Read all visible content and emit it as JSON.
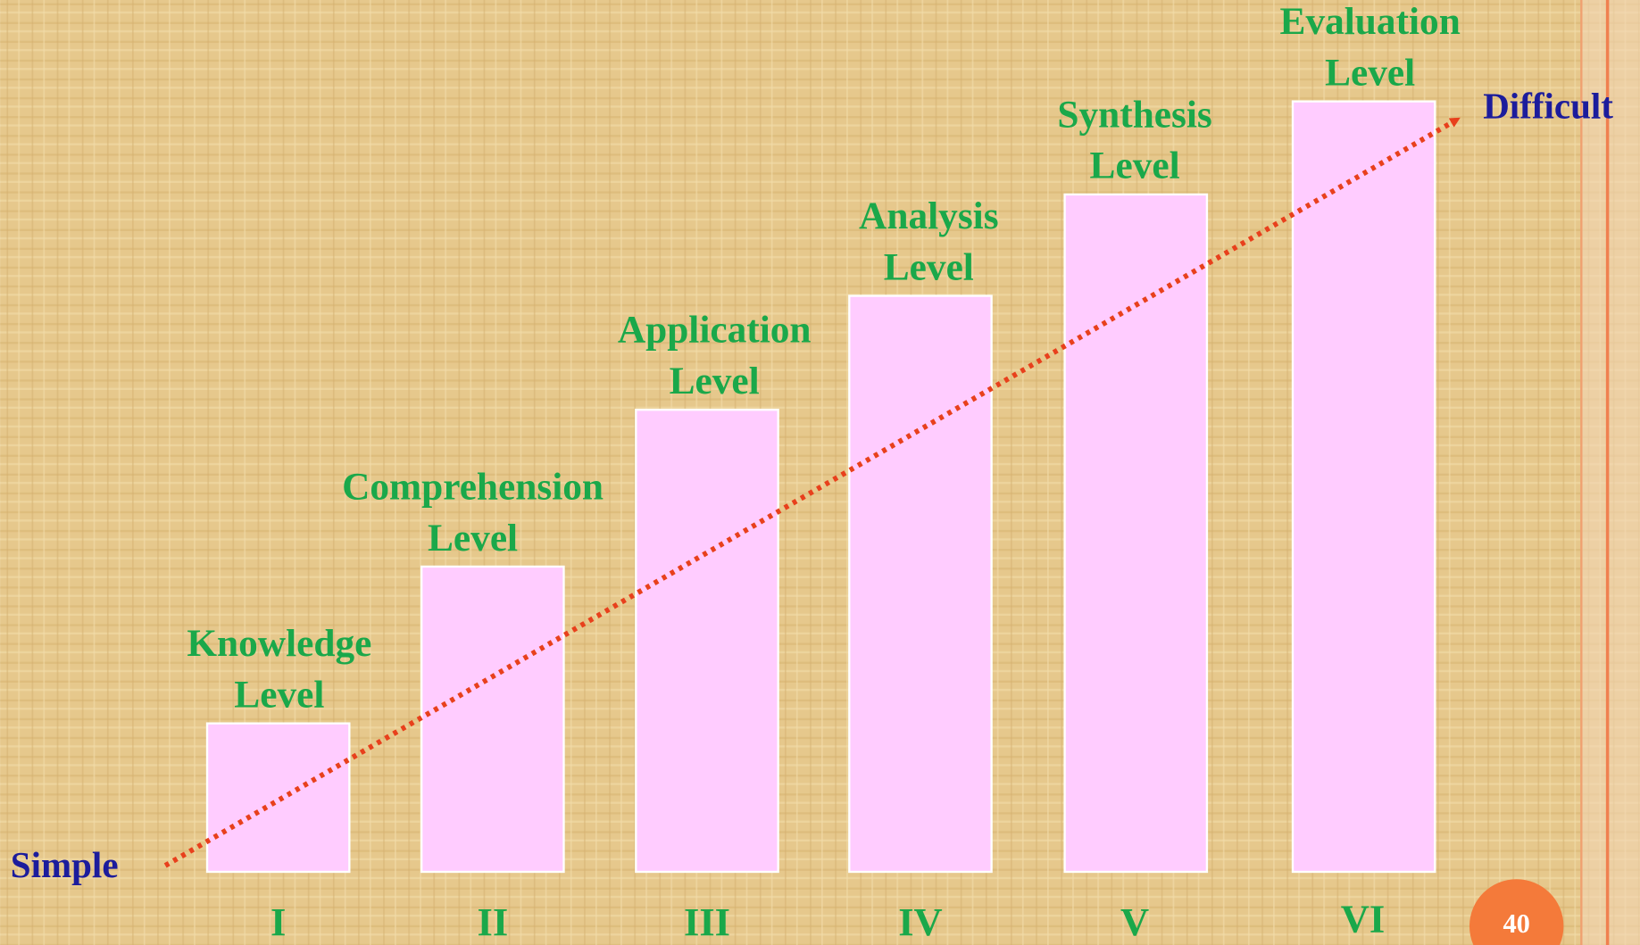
{
  "levels": [
    {
      "label_lines": [
        "Knowledge",
        "Level"
      ],
      "numeral": "I"
    },
    {
      "label_lines": [
        "Comprehension",
        "Level"
      ],
      "numeral": "II"
    },
    {
      "label_lines": [
        "Application",
        "Level"
      ],
      "numeral": "III"
    },
    {
      "label_lines": [
        "Analysis",
        "Level"
      ],
      "numeral": "IV"
    },
    {
      "label_lines": [
        "Synthesis",
        "Level"
      ],
      "numeral": "V"
    },
    {
      "label_lines": [
        "Evaluation",
        "Level"
      ],
      "numeral": "VI"
    }
  ],
  "start_label": "Simple",
  "end_label": "Difficult",
  "page_number": "40"
}
